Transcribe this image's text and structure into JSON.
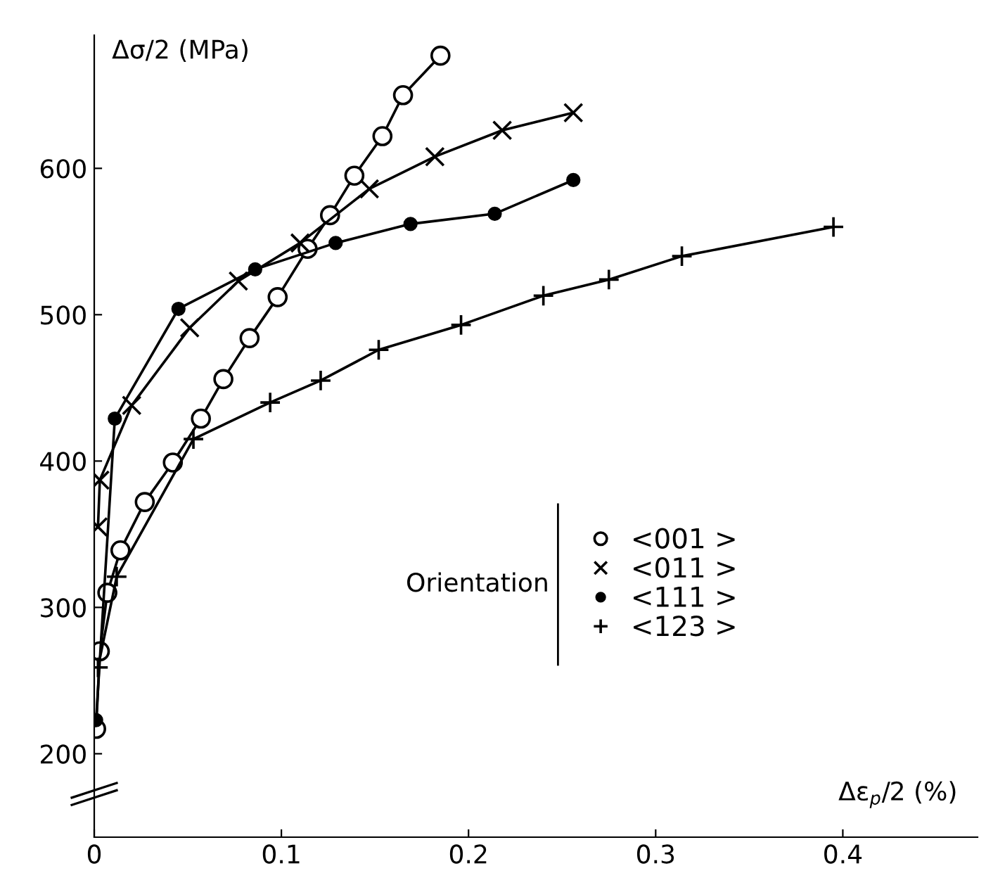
{
  "chart_data": {
    "type": "line",
    "xlabel": "Δε$_{p}$/2 (%)",
    "ylabel": "Δσ/2 (MPa)",
    "legend_title": "Orientation",
    "legend": "center right",
    "grid": false,
    "line_style": "solid",
    "xlim": [
      0,
      0.472
    ],
    "ylim": [
      143,
      691
    ],
    "xticks": [
      0,
      0.1,
      0.2,
      0.3,
      0.4
    ],
    "yticks": [
      200,
      300,
      400,
      500,
      600
    ],
    "series": [
      {
        "name": "<001 >",
        "color": "#000000",
        "marker": "circle",
        "x": [
          0.001,
          0.003,
          0.007,
          0.014,
          0.027,
          0.042,
          0.057,
          0.069,
          0.083,
          0.098,
          0.114,
          0.126,
          0.139,
          0.154,
          0.165,
          0.185
        ],
        "values": [
          217,
          270,
          310,
          339,
          372,
          399,
          429,
          456,
          484,
          512,
          545,
          568,
          595,
          622,
          650,
          677
        ]
      },
      {
        "name": "<011 >",
        "color": "#000000",
        "marker": "x",
        "x": [
          0.002,
          0.003,
          0.02,
          0.051,
          0.077,
          0.11,
          0.147,
          0.182,
          0.218,
          0.256
        ],
        "values": [
          355,
          387,
          438,
          491,
          523,
          549,
          586,
          608,
          626,
          638
        ]
      },
      {
        "name": "<111 >",
        "color": "#000000",
        "marker": "dot",
        "x": [
          0.001,
          0.011,
          0.045,
          0.086,
          0.129,
          0.169,
          0.214,
          0.256
        ],
        "values": [
          223,
          429,
          504,
          531,
          549,
          562,
          569,
          592
        ]
      },
      {
        "name": "<123 >",
        "color": "#000000",
        "marker": "plus",
        "x": [
          0.002,
          0.012,
          0.053,
          0.094,
          0.121,
          0.152,
          0.196,
          0.24,
          0.275,
          0.314,
          0.395
        ],
        "values": [
          259,
          321,
          415,
          440,
          455,
          476,
          493,
          513,
          524,
          540,
          560
        ]
      }
    ]
  }
}
